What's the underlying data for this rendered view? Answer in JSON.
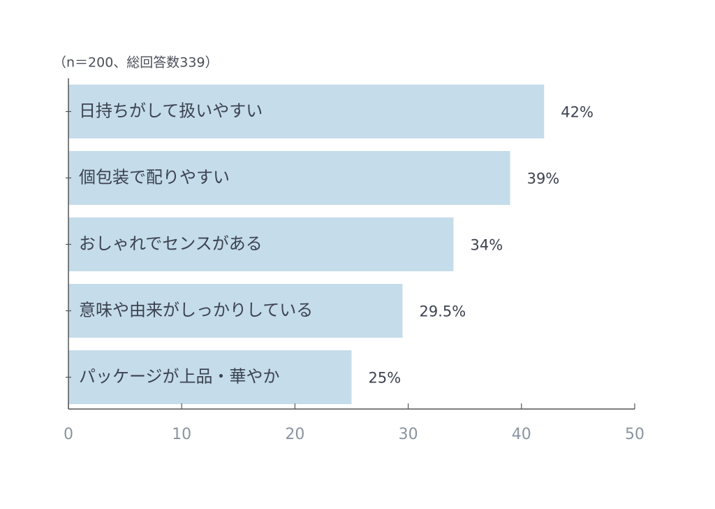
{
  "chart_data": {
    "type": "bar",
    "orientation": "horizontal",
    "subtitle": "（n＝200、総回答数339）",
    "categories": [
      "日持ちがして扱いやすい",
      "個包装で配りやすい",
      "おしゃれでセンスがある",
      "意味や由来がしっかりしている",
      "パッケージが上品・華やか"
    ],
    "values": [
      42,
      39,
      34,
      29.5,
      25
    ],
    "value_labels": [
      "42%",
      "39%",
      "34%",
      "29.5%",
      "25%"
    ],
    "color": "#c5dcea",
    "xlim": [
      0,
      50
    ],
    "xticks": [
      0,
      10,
      20,
      30,
      40,
      50
    ]
  }
}
